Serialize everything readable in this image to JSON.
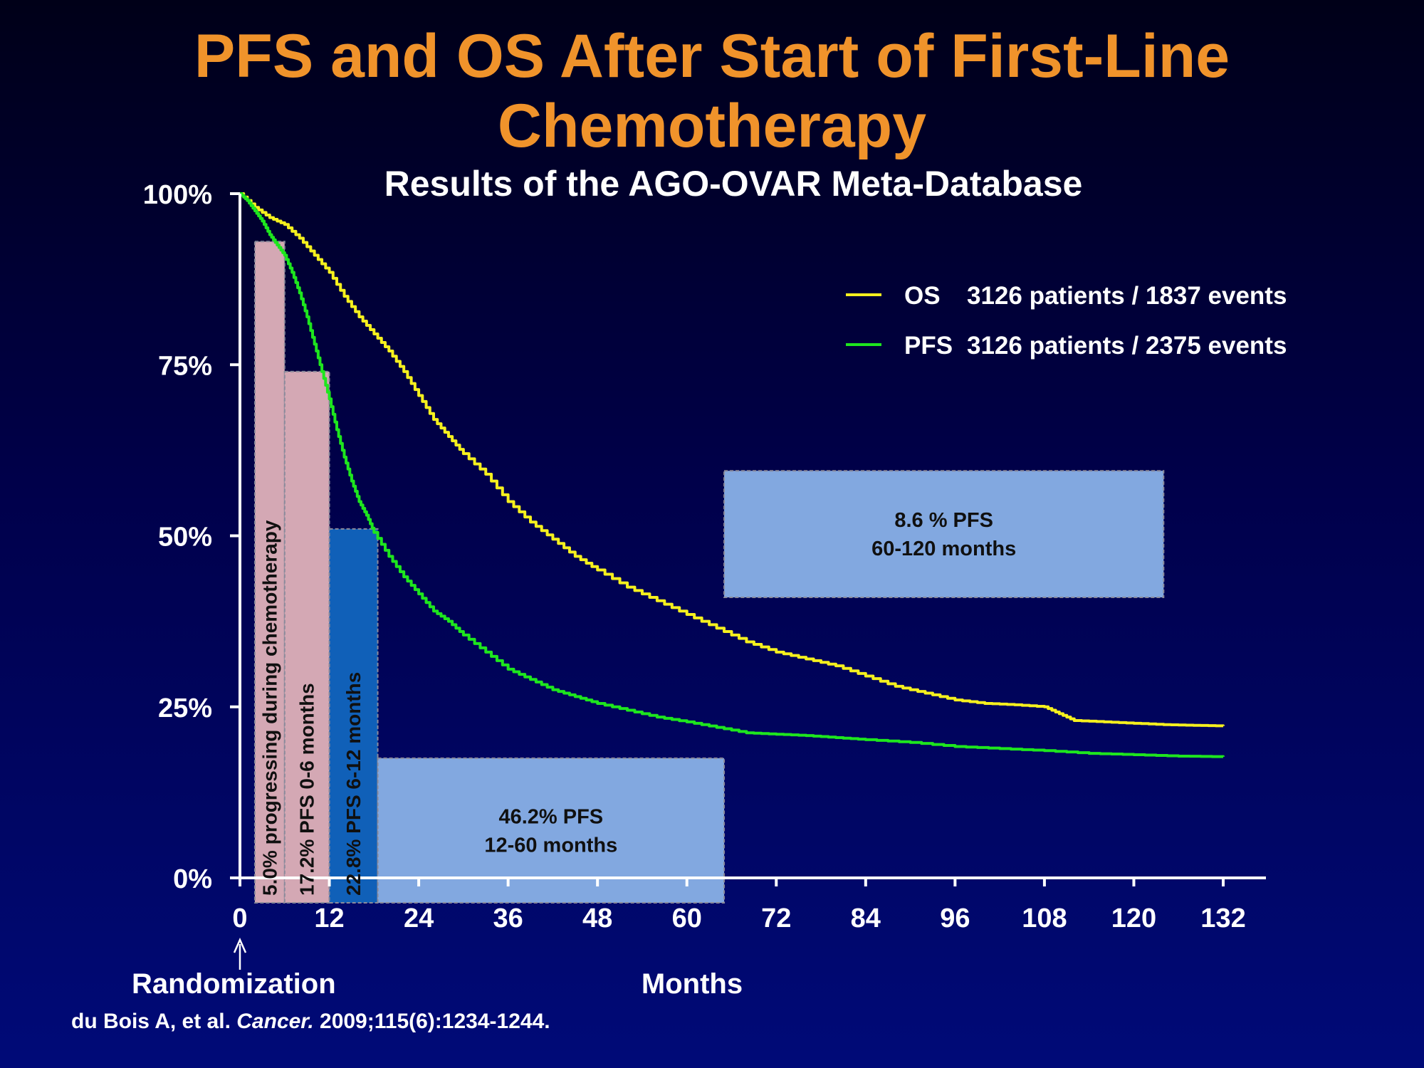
{
  "slide": {
    "title_line1": "PFS and OS After Start of First-Line",
    "title_line2": "Chemotherapy",
    "subtitle": "Results of the AGO-OVAR Meta-Database",
    "citation_prefix": "du Bois A, et al. ",
    "citation_journal": "Cancer.",
    "citation_suffix": " 2009;115(6):1234-1244."
  },
  "colors": {
    "title": "#f0932b",
    "os_line": "#f5f01e",
    "pfs_line": "#1ee61e",
    "pink_box": "#d4a8b4",
    "dark_blue_box": "#1060b8",
    "light_blue_box": "#82a8e0",
    "axis": "#ffffff"
  },
  "chart_data": {
    "type": "line",
    "xlabel": "Months",
    "xlabel_note": "Randomization",
    "xlim": [
      0,
      132
    ],
    "ylim": [
      0,
      100
    ],
    "xticks": [
      0,
      12,
      24,
      36,
      48,
      60,
      72,
      84,
      96,
      108,
      120,
      132
    ],
    "yticks": [
      0,
      25,
      50,
      75,
      100
    ],
    "ytick_labels": [
      "0%",
      "25%",
      "50%",
      "75%",
      "100%"
    ],
    "legend_position": "top-right",
    "series": [
      {
        "name": "OS",
        "legend_detail": "3126 patients / 1837 events",
        "color": "#f5f01e",
        "x": [
          0,
          2,
          4,
          6,
          8,
          10,
          12,
          14,
          16,
          18,
          20,
          22,
          24,
          26,
          28,
          30,
          33,
          36,
          39,
          42,
          45,
          48,
          52,
          56,
          60,
          64,
          68,
          72,
          76,
          80,
          84,
          88,
          92,
          96,
          100,
          104,
          108,
          110,
          112,
          116,
          120,
          124,
          128,
          132
        ],
        "y": [
          100,
          98,
          96.5,
          95.5,
          93.5,
          91,
          88.5,
          85,
          82,
          79.5,
          77,
          74,
          70.5,
          67,
          64.5,
          62,
          59,
          55,
          52,
          49.5,
          47,
          45,
          42.5,
          40.5,
          38.5,
          36.5,
          34.5,
          33,
          32,
          31,
          29.5,
          28,
          27,
          26,
          25.5,
          25.3,
          25,
          24,
          23,
          22.8,
          22.6,
          22.4,
          22.3,
          22.2
        ]
      },
      {
        "name": "PFS",
        "legend_detail": "3126 patients / 2375 events",
        "color": "#1ee61e",
        "x": [
          0,
          1,
          2,
          3,
          4,
          5,
          6,
          7,
          8,
          9,
          10,
          11,
          12,
          13,
          14,
          15,
          16,
          17,
          18,
          20,
          22,
          24,
          26,
          28,
          30,
          33,
          36,
          39,
          42,
          45,
          48,
          52,
          56,
          60,
          64,
          68,
          72,
          76,
          80,
          84,
          90,
          96,
          102,
          108,
          114,
          120,
          126,
          132
        ],
        "y": [
          100,
          99,
          97.5,
          96,
          94,
          92.5,
          91,
          88.5,
          85.5,
          82,
          78,
          74,
          70,
          65.5,
          61.5,
          58,
          55,
          53,
          50.5,
          47,
          44,
          41.5,
          39,
          37.5,
          35.5,
          33,
          30.5,
          29,
          27.5,
          26.5,
          25.5,
          24.5,
          23.5,
          22.8,
          22,
          21.2,
          21,
          20.8,
          20.5,
          20.2,
          19.8,
          19.2,
          18.9,
          18.6,
          18.2,
          18,
          17.8,
          17.7
        ]
      }
    ],
    "annotations": [
      {
        "label": "5.0% progressing during chemotherapy",
        "orientation": "vertical",
        "x_range": [
          2,
          6
        ],
        "y_top": 93,
        "fill": "pink"
      },
      {
        "label": "17.2% PFS 0-6 months",
        "orientation": "vertical",
        "x_range": [
          6,
          12
        ],
        "y_top": 74,
        "fill": "pink"
      },
      {
        "label": "22.8% PFS 6-12 months",
        "orientation": "vertical",
        "x_range": [
          12,
          18.5
        ],
        "y_top": 51,
        "fill": "dark-blue"
      },
      {
        "label_line1": "46.2% PFS",
        "label_line2": "12-60 months",
        "orientation": "horizontal",
        "x_range": [
          18.5,
          65
        ],
        "y_top": 17.5,
        "fill": "light-blue"
      },
      {
        "label_line1": "8.6 % PFS",
        "label_line2": "60-120 months",
        "orientation": "horizontal",
        "x_range": [
          65,
          124
        ],
        "y_range": [
          41,
          59.5
        ],
        "fill": "light-blue"
      }
    ]
  }
}
